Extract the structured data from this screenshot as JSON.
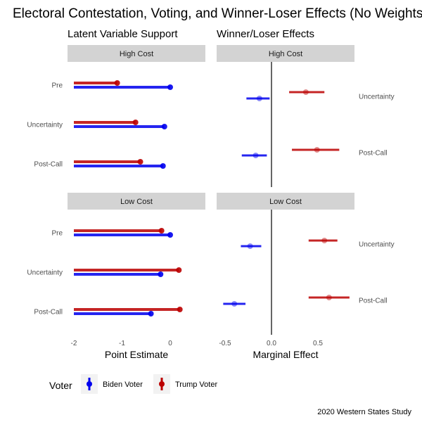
{
  "title": "Electoral Contestation, Voting, and Winner-Loser Effects (No Weights)",
  "caption": "2020 Western States Study",
  "legend": {
    "title": "Voter",
    "items": [
      {
        "label": "Biden Voter",
        "color": "#0000ee"
      },
      {
        "label": "Trump Voter",
        "color": "#bb0000"
      }
    ]
  },
  "colors": {
    "biden": "#0000ee",
    "trump": "#bb0000"
  },
  "chart_data": [
    {
      "type": "bar",
      "subtitle": "Latent Variable Support",
      "xlabel": "Point Estimate",
      "xlim": [
        -2,
        0.5
      ],
      "xticks": [
        -2,
        -1,
        0
      ],
      "xtick_labels": [
        "-2",
        "-1",
        "0"
      ],
      "categories": [
        "Pre",
        "Uncertainty",
        "Post-Call"
      ],
      "baseline": -2,
      "panels": [
        {
          "label": "High Cost",
          "series": [
            {
              "name": "Biden Voter",
              "values": [
                0.0,
                -0.12,
                -0.15
              ]
            },
            {
              "name": "Trump Voter",
              "values": [
                -1.1,
                -0.72,
                -0.62
              ]
            }
          ]
        },
        {
          "label": "Low Cost",
          "series": [
            {
              "name": "Biden Voter",
              "values": [
                0.0,
                -0.2,
                -0.4
              ]
            },
            {
              "name": "Trump Voter",
              "values": [
                -0.18,
                0.18,
                0.2
              ]
            }
          ]
        }
      ]
    },
    {
      "type": "scatter",
      "subtitle": "Winner/Loser Effects",
      "xlabel": "Marginal Effect",
      "xlim": [
        -0.55,
        0.9
      ],
      "xticks": [
        -0.5,
        0,
        0.5
      ],
      "xtick_labels": [
        "-0.5",
        "0.0",
        "0.5"
      ],
      "reference_line": 0,
      "panels": [
        {
          "label": "High Cost",
          "groups": [
            {
              "label": "Uncertainty",
              "points": [
                {
                  "series": "Trump Voter",
                  "estimate": 0.37,
                  "low": 0.19,
                  "high": 0.57
                },
                {
                  "series": "Biden Voter",
                  "estimate": -0.13,
                  "low": -0.27,
                  "high": -0.02
                }
              ]
            },
            {
              "label": "Post-Call",
              "points": [
                {
                  "series": "Trump Voter",
                  "estimate": 0.49,
                  "low": 0.22,
                  "high": 0.73
                },
                {
                  "series": "Biden Voter",
                  "estimate": -0.17,
                  "low": -0.32,
                  "high": -0.05
                }
              ]
            }
          ]
        },
        {
          "label": "Low Cost",
          "groups": [
            {
              "label": "Uncertainty",
              "points": [
                {
                  "series": "Trump Voter",
                  "estimate": 0.57,
                  "low": 0.4,
                  "high": 0.71
                },
                {
                  "series": "Biden Voter",
                  "estimate": -0.23,
                  "low": -0.33,
                  "high": -0.11
                }
              ]
            },
            {
              "label": "Post-Call",
              "points": [
                {
                  "series": "Trump Voter",
                  "estimate": 0.62,
                  "low": 0.4,
                  "high": 0.84
                },
                {
                  "series": "Biden Voter",
                  "estimate": -0.4,
                  "low": -0.52,
                  "high": -0.28
                }
              ]
            }
          ]
        }
      ]
    }
  ]
}
